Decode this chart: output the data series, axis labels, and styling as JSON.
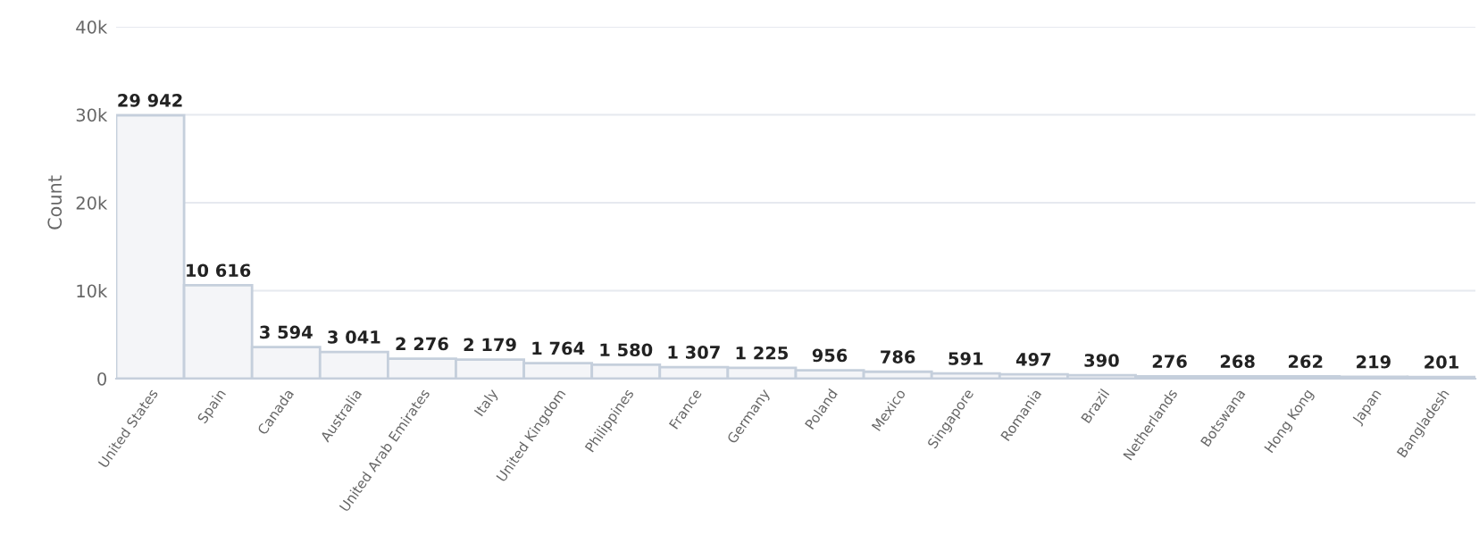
{
  "chart_data": {
    "type": "bar",
    "ylabel": "Count",
    "categories": [
      "United States",
      "Spain",
      "Canada",
      "Australia",
      "United Arab Emirates",
      "Italy",
      "United Kingdom",
      "Philippines",
      "France",
      "Germany",
      "Poland",
      "Mexico",
      "Singapore",
      "Romania",
      "Brazil",
      "Netherlands",
      "Botswana",
      "Hong Kong",
      "Japan",
      "Bangladesh"
    ],
    "values": [
      29942,
      10616,
      3594,
      3041,
      2276,
      2179,
      1764,
      1580,
      1307,
      1225,
      956,
      786,
      591,
      497,
      390,
      276,
      268,
      262,
      219,
      201
    ],
    "value_labels": [
      "29 942",
      "10 616",
      "3 594",
      "3 041",
      "2 276",
      "2 179",
      "1 764",
      "1 580",
      "1 307",
      "1 225",
      "956",
      "786",
      "591",
      "497",
      "390",
      "276",
      "268",
      "262",
      "219",
      "201"
    ],
    "color": "#f4f5f8",
    "ylim": [
      0,
      40000
    ],
    "yticks": [
      {
        "value": 0,
        "label": "0"
      },
      {
        "value": 10000,
        "label": "10k"
      },
      {
        "value": 20000,
        "label": "20k"
      },
      {
        "value": 30000,
        "label": "30k"
      },
      {
        "value": 40000,
        "label": "40k"
      }
    ],
    "grid": "y",
    "legend": false
  }
}
